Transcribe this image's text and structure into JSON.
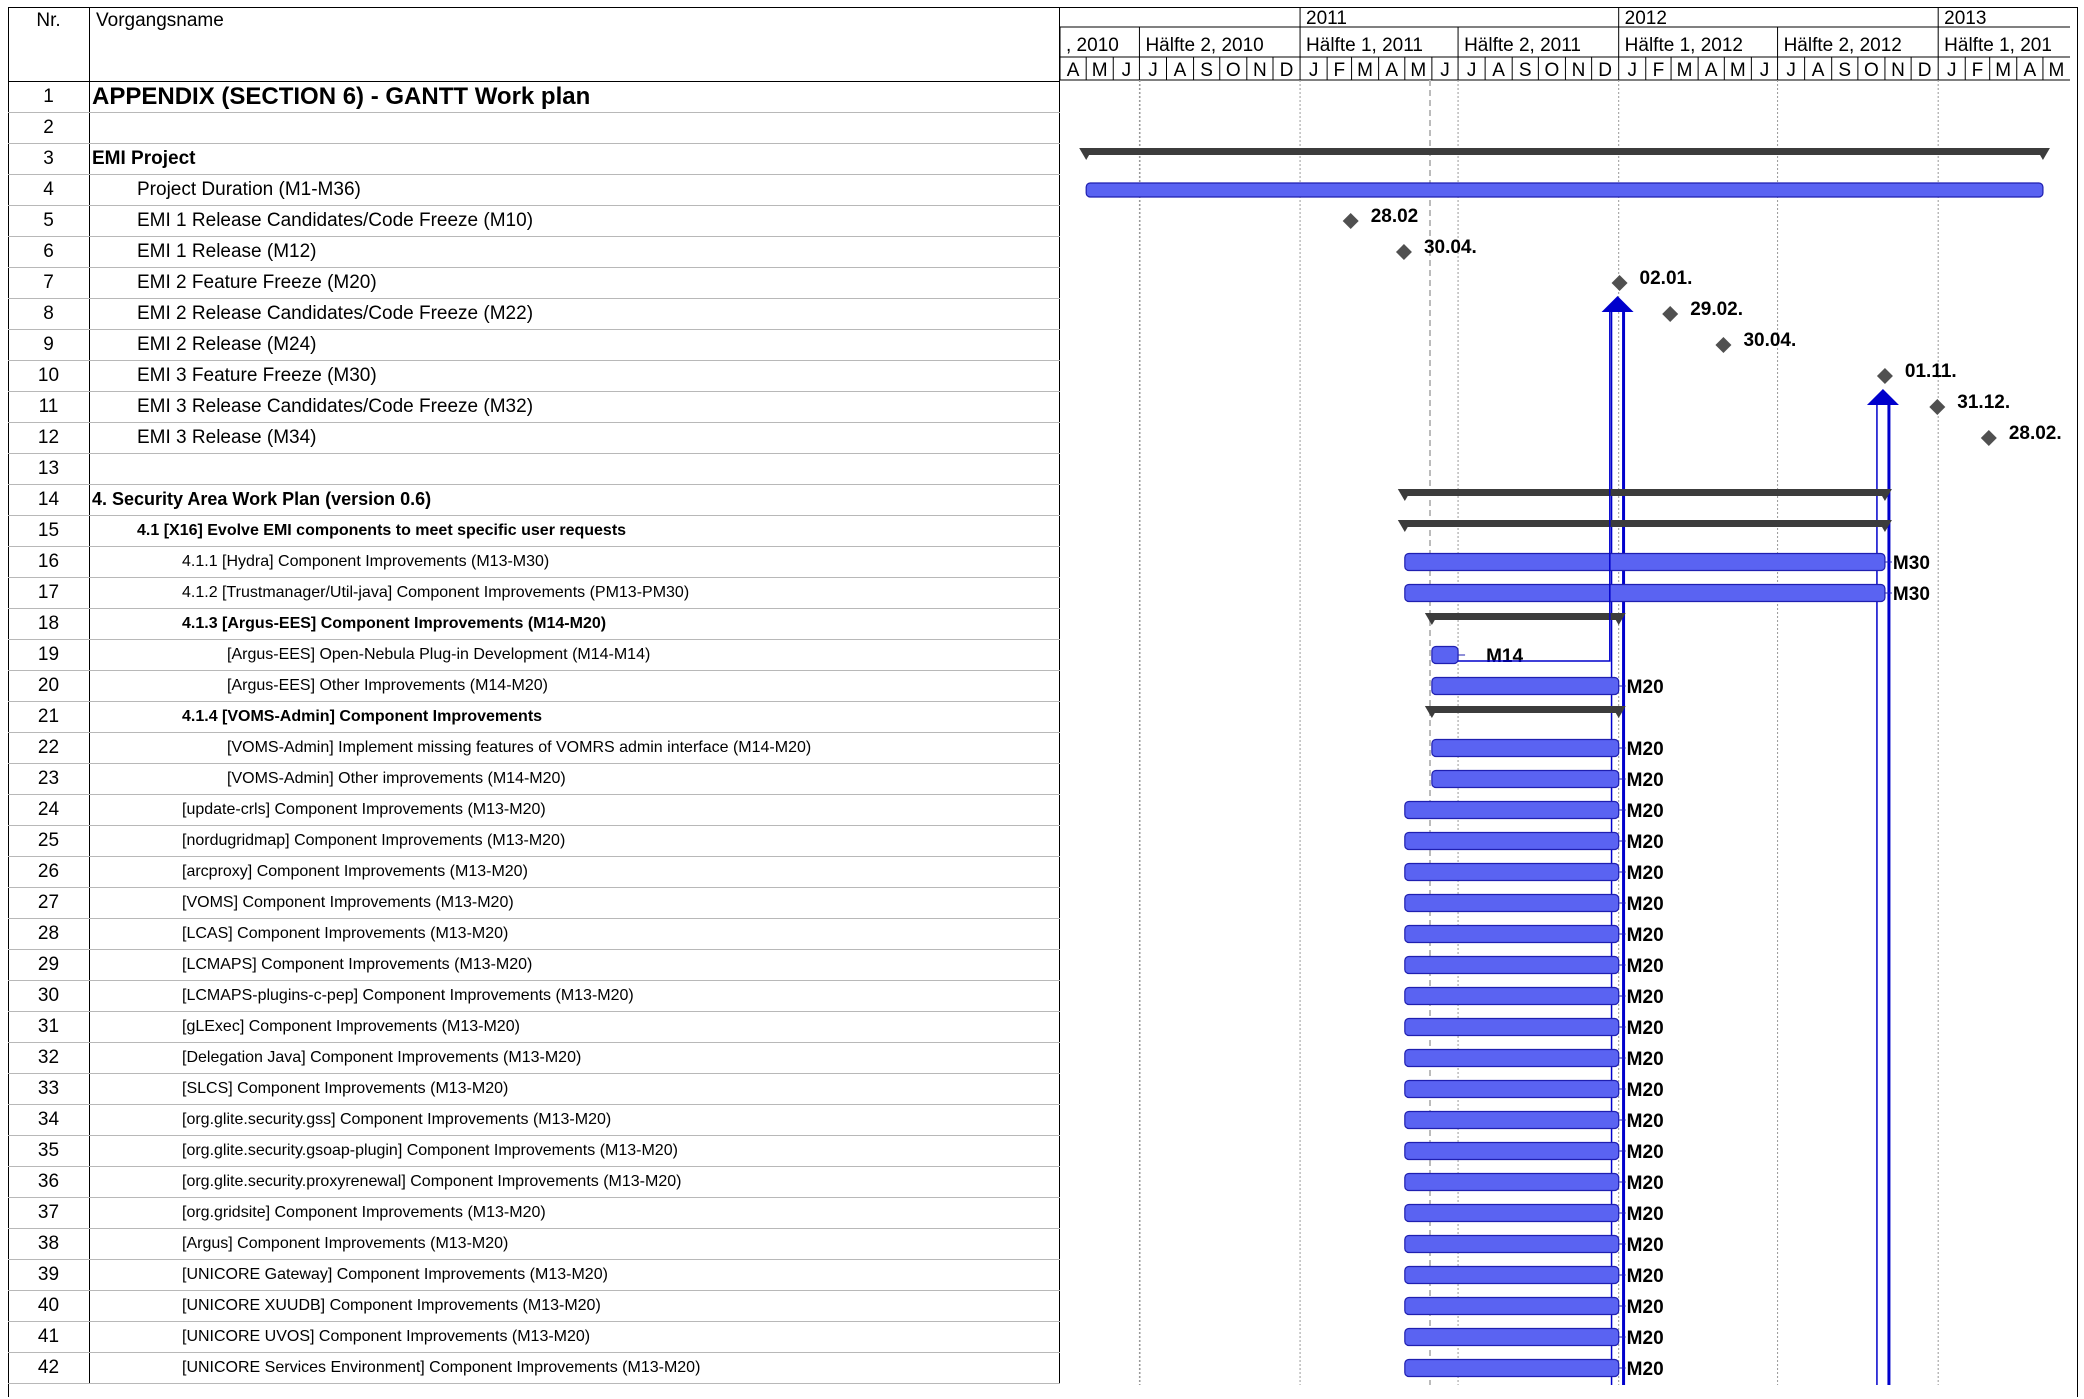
{
  "header": {
    "nr_label": "Nr.",
    "name_label": "Vorgangsname"
  },
  "timeline": {
    "years": [
      {
        "label": "2011",
        "start": "2011-01-01",
        "end": "2012-01-01"
      },
      {
        "label": "2012",
        "start": "2012-01-01",
        "end": "2013-01-01"
      },
      {
        "label": "2013",
        "start": "2013-01-01",
        "end": "2013-06-01"
      }
    ],
    "halves": [
      {
        "label": ", 2010",
        "start": "2010-04-01",
        "end": "2010-07-01"
      },
      {
        "label": "Hälfte 2, 2010",
        "start": "2010-07-01",
        "end": "2011-01-01"
      },
      {
        "label": "Hälfte 1, 2011",
        "start": "2011-01-01",
        "end": "2011-07-01"
      },
      {
        "label": "Hälfte 2, 2011",
        "start": "2011-07-01",
        "end": "2012-01-01"
      },
      {
        "label": "Hälfte 1, 2012",
        "start": "2012-01-01",
        "end": "2012-07-01"
      },
      {
        "label": "Hälfte 2, 2012",
        "start": "2012-07-01",
        "end": "2013-01-01"
      },
      {
        "label": "Hälfte 1, 201",
        "start": "2013-01-01",
        "end": "2013-06-01"
      }
    ],
    "months": [
      "A",
      "M",
      "J",
      "J",
      "A",
      "S",
      "O",
      "N",
      "D",
      "J",
      "F",
      "M",
      "A",
      "M",
      "J",
      "J",
      "A",
      "S",
      "O",
      "N",
      "D",
      "J",
      "F",
      "M",
      "A",
      "M",
      "J",
      "J",
      "A",
      "S",
      "O",
      "N",
      "D",
      "J",
      "F",
      "M",
      "A",
      "M"
    ]
  },
  "tasks": [
    {
      "nr": "1",
      "name": "APPENDIX (SECTION 6) - GANTT Work plan",
      "style": "title"
    },
    {
      "nr": "2",
      "name": "",
      "style": "plain0"
    },
    {
      "nr": "3",
      "name": "EMI Project",
      "style": "bold0"
    },
    {
      "nr": "4",
      "name": "Project Duration (M1-M36)",
      "style": "l1"
    },
    {
      "nr": "5",
      "name": "EMI 1 Release Candidates/Code Freeze (M10)",
      "style": "l1"
    },
    {
      "nr": "6",
      "name": "EMI 1 Release (M12)",
      "style": "l1"
    },
    {
      "nr": "7",
      "name": "EMI 2 Feature Freeze (M20)",
      "style": "l1"
    },
    {
      "nr": "8",
      "name": "EMI 2 Release Candidates/Code Freeze (M22)",
      "style": "l1"
    },
    {
      "nr": "9",
      "name": "EMI 2 Release (M24)",
      "style": "l1"
    },
    {
      "nr": "10",
      "name": "EMI 3 Feature Freeze (M30)",
      "style": "l1"
    },
    {
      "nr": "11",
      "name": "EMI 3 Release Candidates/Code Freeze (M32)",
      "style": "l1"
    },
    {
      "nr": "12",
      "name": "EMI 3 Release (M34)",
      "style": "l1"
    },
    {
      "nr": "13",
      "name": "",
      "style": "plain0"
    },
    {
      "nr": "14",
      "name": "4. Security Area Work Plan (version 0.6)",
      "style": "bold1"
    },
    {
      "nr": "15",
      "name": "4.1 [X16] Evolve EMI components to meet specific user requests",
      "style": "bold2"
    },
    {
      "nr": "16",
      "name": "4.1.1 [Hydra] Component Improvements (M13-M30)",
      "style": "l3"
    },
    {
      "nr": "17",
      "name": "4.1.2 [Trustmanager/Util-java] Component Improvements (PM13-PM30)",
      "style": "l3"
    },
    {
      "nr": "18",
      "name": "4.1.3 [Argus-EES] Component Improvements (M14-M20)",
      "style": "bold3"
    },
    {
      "nr": "19",
      "name": "[Argus-EES] Open-Nebula Plug-in Development (M14-M14)",
      "style": "l4"
    },
    {
      "nr": "20",
      "name": "[Argus-EES] Other Improvements (M14-M20)",
      "style": "l4"
    },
    {
      "nr": "21",
      "name": "4.1.4 [VOMS-Admin] Component Improvements",
      "style": "bold3"
    },
    {
      "nr": "22",
      "name": "[VOMS-Admin] Implement missing features of VOMRS admin interface (M14-M20)",
      "style": "l4"
    },
    {
      "nr": "23",
      "name": "[VOMS-Admin] Other improvements (M14-M20)",
      "style": "l4"
    },
    {
      "nr": "24",
      "name": "[update-crls] Component Improvements (M13-M20)",
      "style": "l3"
    },
    {
      "nr": "25",
      "name": "[nordugridmap] Component Improvements (M13-M20)",
      "style": "l3"
    },
    {
      "nr": "26",
      "name": "[arcproxy] Component Improvements (M13-M20)",
      "style": "l3"
    },
    {
      "nr": "27",
      "name": "[VOMS] Component Improvements (M13-M20)",
      "style": "l3"
    },
    {
      "nr": "28",
      "name": "[LCAS] Component Improvements (M13-M20)",
      "style": "l3"
    },
    {
      "nr": "29",
      "name": "[LCMAPS] Component Improvements (M13-M20)",
      "style": "l3"
    },
    {
      "nr": "30",
      "name": "[LCMAPS-plugins-c-pep] Component Improvements (M13-M20)",
      "style": "l3"
    },
    {
      "nr": "31",
      "name": "[gLExec] Component Improvements (M13-M20)",
      "style": "l3"
    },
    {
      "nr": "32",
      "name": "[Delegation Java] Component Improvements (M13-M20)",
      "style": "l3"
    },
    {
      "nr": "33",
      "name": "[SLCS] Component Improvements (M13-M20)",
      "style": "l3"
    },
    {
      "nr": "34",
      "name": "[org.glite.security.gss] Component Improvements (M13-M20)",
      "style": "l3"
    },
    {
      "nr": "35",
      "name": "[org.glite.security.gsoap-plugin] Component Improvements (M13-M20)",
      "style": "l3"
    },
    {
      "nr": "36",
      "name": "[org.glite.security.proxyrenewal] Component Improvements (M13-M20)",
      "style": "l3"
    },
    {
      "nr": "37",
      "name": "[org.gridsite] Component Improvements (M13-M20)",
      "style": "l3"
    },
    {
      "nr": "38",
      "name": "[Argus] Component Improvements (M13-M20)",
      "style": "l3"
    },
    {
      "nr": "39",
      "name": "[UNICORE Gateway] Component Improvements (M13-M20)",
      "style": "l3"
    },
    {
      "nr": "40",
      "name": "[UNICORE XUUDB] Component Improvements (M13-M20)",
      "style": "l3"
    },
    {
      "nr": "41",
      "name": "[UNICORE UVOS] Component Improvements (M13-M20)",
      "style": "l3"
    },
    {
      "nr": "42",
      "name": "[UNICORE Services Environment] Component Improvements (M13-M20)",
      "style": "l3"
    }
  ],
  "chart_data": {
    "type": "gantt",
    "x_range": [
      "2010-04-01",
      "2013-06-01"
    ],
    "summaries": [
      {
        "row": 3,
        "start": "2010-05-01",
        "end": "2013-04-30"
      },
      {
        "row": 14,
        "start": "2011-05-01",
        "end": "2012-10-31"
      },
      {
        "row": 15,
        "start": "2011-05-01",
        "end": "2012-10-31"
      },
      {
        "row": 18,
        "start": "2011-06-01",
        "end": "2011-12-31"
      },
      {
        "row": 21,
        "start": "2011-06-01",
        "end": "2011-12-31"
      }
    ],
    "bars": [
      {
        "row": 4,
        "start": "2010-05-01",
        "end": "2013-04-30",
        "label": ""
      },
      {
        "row": 16,
        "start": "2011-05-01",
        "end": "2012-10-31",
        "label": "M30"
      },
      {
        "row": 17,
        "start": "2011-05-01",
        "end": "2012-10-31",
        "label": "M30"
      },
      {
        "row": 19,
        "start": "2011-06-01",
        "end": "2011-06-30",
        "label": "M14"
      },
      {
        "row": 20,
        "start": "2011-06-01",
        "end": "2011-12-31",
        "label": "M20"
      },
      {
        "row": 22,
        "start": "2011-06-01",
        "end": "2011-12-31",
        "label": "M20"
      },
      {
        "row": 23,
        "start": "2011-06-01",
        "end": "2011-12-31",
        "label": "M20"
      },
      {
        "row": 24,
        "start": "2011-05-01",
        "end": "2011-12-31",
        "label": "M20"
      },
      {
        "row": 25,
        "start": "2011-05-01",
        "end": "2011-12-31",
        "label": "M20"
      },
      {
        "row": 26,
        "start": "2011-05-01",
        "end": "2011-12-31",
        "label": "M20"
      },
      {
        "row": 27,
        "start": "2011-05-01",
        "end": "2011-12-31",
        "label": "M20"
      },
      {
        "row": 28,
        "start": "2011-05-01",
        "end": "2011-12-31",
        "label": "M20"
      },
      {
        "row": 29,
        "start": "2011-05-01",
        "end": "2011-12-31",
        "label": "M20"
      },
      {
        "row": 30,
        "start": "2011-05-01",
        "end": "2011-12-31",
        "label": "M20"
      },
      {
        "row": 31,
        "start": "2011-05-01",
        "end": "2011-12-31",
        "label": "M20"
      },
      {
        "row": 32,
        "start": "2011-05-01",
        "end": "2011-12-31",
        "label": "M20"
      },
      {
        "row": 33,
        "start": "2011-05-01",
        "end": "2011-12-31",
        "label": "M20"
      },
      {
        "row": 34,
        "start": "2011-05-01",
        "end": "2011-12-31",
        "label": "M20"
      },
      {
        "row": 35,
        "start": "2011-05-01",
        "end": "2011-12-31",
        "label": "M20"
      },
      {
        "row": 36,
        "start": "2011-05-01",
        "end": "2011-12-31",
        "label": "M20"
      },
      {
        "row": 37,
        "start": "2011-05-01",
        "end": "2011-12-31",
        "label": "M20"
      },
      {
        "row": 38,
        "start": "2011-05-01",
        "end": "2011-12-31",
        "label": "M20"
      },
      {
        "row": 39,
        "start": "2011-05-01",
        "end": "2011-12-31",
        "label": "M20"
      },
      {
        "row": 40,
        "start": "2011-05-01",
        "end": "2011-12-31",
        "label": "M20"
      },
      {
        "row": 41,
        "start": "2011-05-01",
        "end": "2011-12-31",
        "label": "M20"
      },
      {
        "row": 42,
        "start": "2011-05-01",
        "end": "2011-12-31",
        "label": "M20"
      }
    ],
    "milestones": [
      {
        "row": 5,
        "date": "2011-02-28",
        "label": "28.02"
      },
      {
        "row": 6,
        "date": "2011-04-30",
        "label": "30.04."
      },
      {
        "row": 7,
        "date": "2012-01-02",
        "label": "02.01."
      },
      {
        "row": 8,
        "date": "2012-02-29",
        "label": "29.02."
      },
      {
        "row": 9,
        "date": "2012-04-30",
        "label": "30.04."
      },
      {
        "row": 10,
        "date": "2012-11-01",
        "label": "01.11."
      },
      {
        "row": 11,
        "date": "2012-12-31",
        "label": "31.12."
      },
      {
        "row": 12,
        "date": "2013-02-28",
        "label": "28.02."
      }
    ],
    "deadlines": [
      "2012-01-02",
      "2012-11-01"
    ],
    "colors": {
      "bar_fill": "#5a63f2",
      "bar_stroke": "#1f1fb0",
      "summary": "#3c3c3c",
      "deadline": "#0000cc",
      "milestone": "#505050"
    }
  }
}
